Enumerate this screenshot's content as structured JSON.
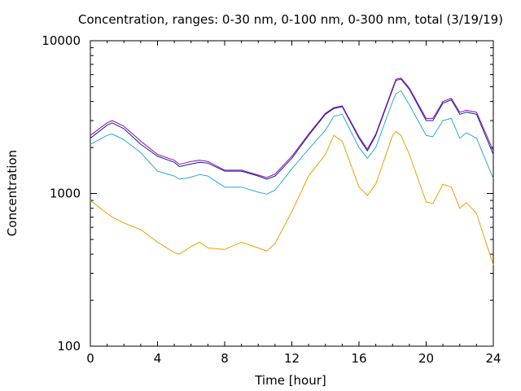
{
  "chart_data": {
    "type": "line",
    "title": "Concentration, ranges: 0-30 nm, 0-100 nm, 0-300 nm, total (3/19/19)",
    "xlabel": "Time [hour]",
    "ylabel": "Concentration",
    "xlim": [
      0,
      24
    ],
    "ylim": [
      100,
      10000
    ],
    "yscale": "log",
    "grid": false,
    "legend": "none",
    "xticks": [
      0,
      4,
      8,
      12,
      16,
      20,
      24
    ],
    "xtick_labels": [
      "0",
      "4",
      "8",
      "12",
      "16",
      "20",
      "24"
    ],
    "yticks": [
      100,
      1000,
      10000
    ],
    "ytick_labels": [
      "100",
      "1000",
      "10000"
    ],
    "x": [
      0,
      1,
      1.3,
      2,
      3,
      4,
      5,
      5.3,
      6,
      6.5,
      7,
      8,
      9,
      10,
      10.5,
      11,
      12,
      13,
      14,
      14.5,
      15,
      16,
      16.5,
      17,
      18,
      18.2,
      18.5,
      19,
      20,
      20.4,
      21,
      21.5,
      22,
      22.4,
      23,
      24
    ],
    "series": [
      {
        "color": "#e8a000",
        "values": [
          900,
          740,
          700,
          640,
          580,
          480,
          410,
          400,
          450,
          480,
          440,
          430,
          480,
          440,
          420,
          470,
          760,
          1300,
          1800,
          2400,
          2200,
          1100,
          970,
          1150,
          2400,
          2550,
          2400,
          1800,
          880,
          860,
          1150,
          1100,
          800,
          870,
          740,
          340
        ]
      },
      {
        "color": "#2aa8d8",
        "values": [
          2100,
          2400,
          2450,
          2250,
          1850,
          1400,
          1300,
          1240,
          1280,
          1330,
          1300,
          1100,
          1100,
          1020,
          990,
          1050,
          1450,
          1950,
          2600,
          3200,
          3300,
          2000,
          1700,
          2000,
          4000,
          4500,
          4700,
          3800,
          2400,
          2350,
          3000,
          3100,
          2300,
          2500,
          2300,
          1250
        ]
      },
      {
        "color": "#003070",
        "values": [
          2300,
          2800,
          2900,
          2650,
          2100,
          1750,
          1600,
          1500,
          1560,
          1600,
          1580,
          1400,
          1400,
          1300,
          1240,
          1300,
          1700,
          2400,
          3300,
          3600,
          3700,
          2300,
          1900,
          2400,
          4800,
          5500,
          5600,
          4800,
          3000,
          3000,
          3900,
          4100,
          3300,
          3400,
          3300,
          1800
        ]
      },
      {
        "color": "#9b00c8",
        "values": [
          2400,
          2900,
          3000,
          2750,
          2200,
          1800,
          1650,
          1550,
          1620,
          1650,
          1620,
          1420,
          1420,
          1320,
          1270,
          1340,
          1750,
          2450,
          3350,
          3650,
          3750,
          2350,
          1950,
          2450,
          4900,
          5600,
          5700,
          4900,
          3100,
          3100,
          4000,
          4200,
          3400,
          3500,
          3400,
          1900
        ]
      }
    ]
  }
}
